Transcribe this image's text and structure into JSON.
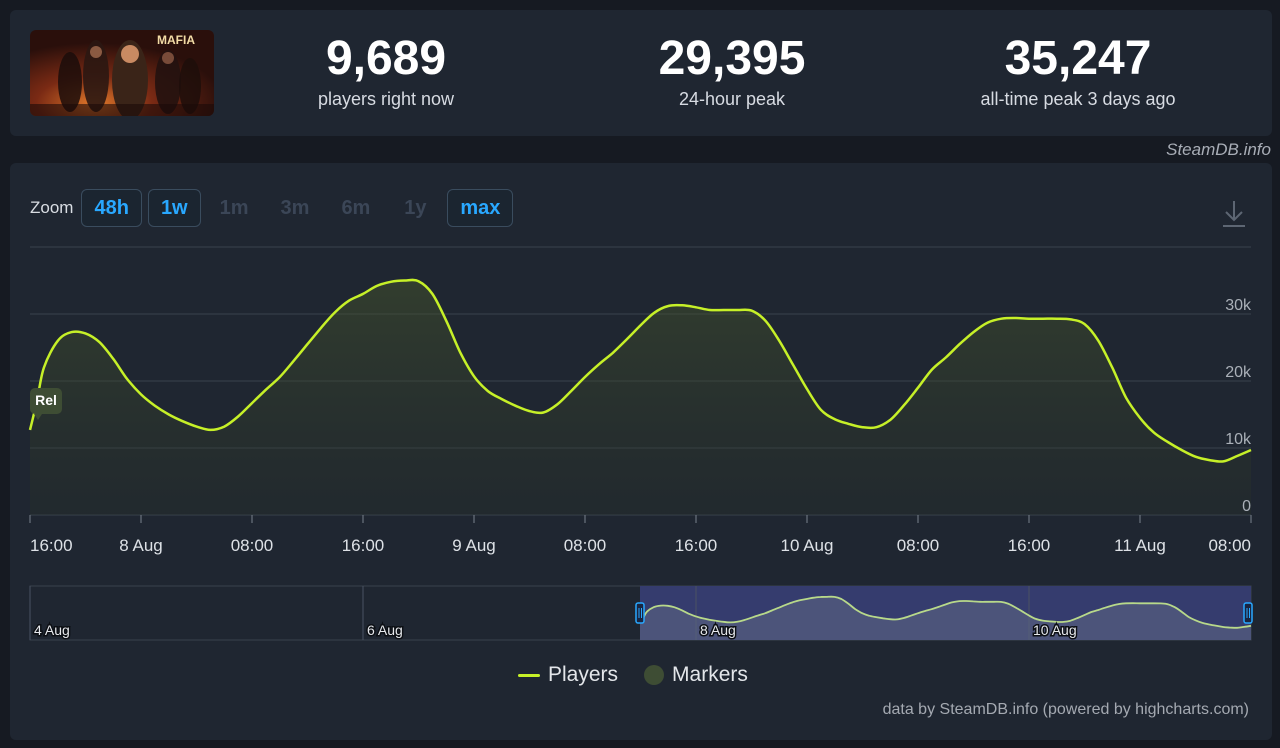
{
  "stats": [
    {
      "value": "9,689",
      "label": "players right now"
    },
    {
      "value": "29,395",
      "label": "24-hour peak"
    },
    {
      "value": "35,247",
      "label": "all-time peak 3 days ago"
    }
  ],
  "game_art_title": "MAFIA",
  "credit_top": "SteamDB.info",
  "zoom": {
    "label": "Zoom",
    "buttons": [
      {
        "label": "48h",
        "active": true
      },
      {
        "label": "1w",
        "active": true
      },
      {
        "label": "1m",
        "active": false
      },
      {
        "label": "3m",
        "active": false
      },
      {
        "label": "6m",
        "active": false
      },
      {
        "label": "1y",
        "active": false
      },
      {
        "label": "max",
        "active": true
      }
    ]
  },
  "marker_label": "Rel",
  "legend": {
    "players": "Players",
    "markers": "Markers"
  },
  "credit_bottom": "data by SteamDB.info (powered by highcharts.com)",
  "colors": {
    "line": "#c6f028",
    "navigator_selection": "#353c6e",
    "marker": "#3e4d34"
  },
  "chart_data": {
    "type": "line",
    "series": [
      {
        "name": "Players",
        "x_hours": [
          0,
          0.5,
          1,
          2,
          3,
          4,
          5,
          6,
          7,
          8,
          9,
          10,
          11,
          12,
          13,
          14,
          15,
          16,
          17,
          18,
          19,
          20,
          21,
          22,
          23,
          24,
          25,
          26,
          27,
          28,
          29,
          30,
          31,
          32,
          33,
          34,
          35,
          36,
          37,
          38,
          39,
          40,
          41,
          42,
          43,
          44,
          45,
          46,
          47,
          48,
          49,
          50,
          51,
          52,
          53,
          54,
          55,
          56,
          57,
          58,
          59,
          60,
          61,
          62,
          63,
          64,
          65,
          66,
          67,
          68,
          69,
          70,
          71,
          72,
          73,
          74,
          75,
          76,
          77,
          78,
          79,
          80,
          81,
          82,
          83,
          84,
          85,
          86,
          87,
          88
        ],
        "values": [
          12700,
          17000,
          22000,
          26000,
          27300,
          27100,
          25800,
          23300,
          20300,
          18000,
          16300,
          15000,
          14000,
          13200,
          12700,
          13200,
          14700,
          16700,
          18700,
          20600,
          23000,
          25500,
          28000,
          30300,
          32000,
          33000,
          34200,
          34800,
          35000,
          34900,
          33000,
          29000,
          24300,
          20700,
          18500,
          17300,
          16300,
          15500,
          15300,
          16500,
          18500,
          20600,
          22500,
          24200,
          26200,
          28300,
          30200,
          31200,
          31300,
          31000,
          30600,
          30600,
          30600,
          30500,
          29000,
          26000,
          22400,
          18800,
          15700,
          14300,
          13600,
          13100,
          13100,
          14200,
          16400,
          19000,
          21700,
          23500,
          25500,
          27300,
          28700,
          29300,
          29400,
          29300,
          29300,
          29300,
          29200,
          28500,
          26000,
          22000,
          17500,
          14500,
          12300,
          10900,
          9700,
          8700,
          8200,
          8000,
          8800,
          9700
        ],
        "x_ticks": [
          "16:00",
          "8 Aug",
          "08:00",
          "16:00",
          "9 Aug",
          "08:00",
          "16:00",
          "10 Aug",
          "08:00",
          "16:00",
          "11 Aug",
          "08:00"
        ],
        "y_ticks": [
          "0",
          "10k",
          "20k",
          "30k"
        ]
      }
    ],
    "ylim": [
      0,
      40000
    ],
    "grid": true,
    "legend_position": "bottom-center",
    "navigator": {
      "labels": [
        "4 Aug",
        "6 Aug",
        "8 Aug",
        "10 Aug"
      ]
    }
  }
}
